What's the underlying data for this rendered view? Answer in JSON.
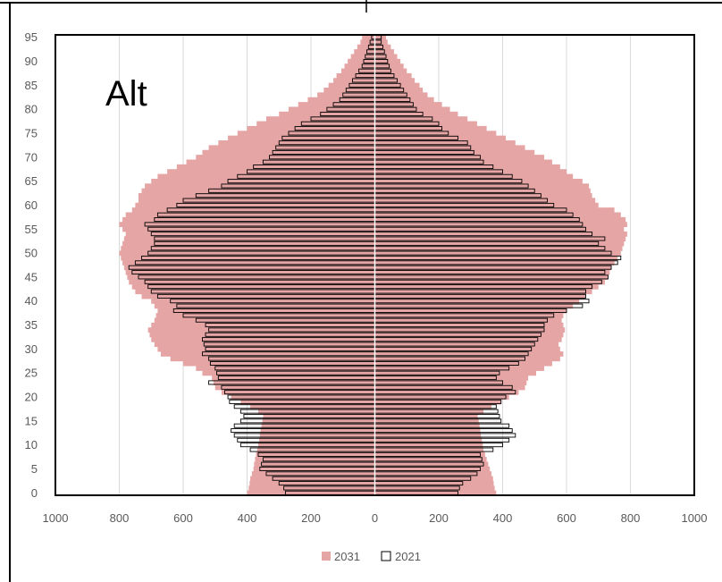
{
  "chart_data": {
    "type": "bar",
    "orientation": "horizontal-population-pyramid",
    "panel_label": "Alt",
    "title": "",
    "xlabel": "",
    "ylabel": "",
    "xlim": [
      -1000,
      1000
    ],
    "ylim": [
      0,
      96
    ],
    "x_ticks": [
      -1000,
      -800,
      -600,
      -400,
      -200,
      0,
      200,
      400,
      600,
      800,
      1000
    ],
    "x_tick_labels": [
      "1000",
      "800",
      "600",
      "400",
      "200",
      "0",
      "200",
      "400",
      "600",
      "800",
      "1000"
    ],
    "y_ticks": [
      0,
      5,
      10,
      15,
      20,
      25,
      30,
      35,
      40,
      45,
      50,
      55,
      60,
      65,
      70,
      75,
      80,
      85,
      90,
      95
    ],
    "y_tick_labels": [
      "0",
      "5",
      "10",
      "15",
      "20",
      "25",
      "30",
      "35",
      "40",
      "45",
      "50",
      "55",
      "60",
      "65",
      "70",
      "75",
      "80",
      "85",
      "90",
      "95"
    ],
    "grid": "vertical",
    "legend_position": "bottom",
    "ages": [
      0,
      1,
      2,
      3,
      4,
      5,
      6,
      7,
      8,
      9,
      10,
      11,
      12,
      13,
      14,
      15,
      16,
      17,
      18,
      19,
      20,
      21,
      22,
      23,
      24,
      25,
      26,
      27,
      28,
      29,
      30,
      31,
      32,
      33,
      34,
      35,
      36,
      37,
      38,
      39,
      40,
      41,
      42,
      43,
      44,
      45,
      46,
      47,
      48,
      49,
      50,
      51,
      52,
      53,
      54,
      55,
      56,
      57,
      58,
      59,
      60,
      61,
      62,
      63,
      64,
      65,
      66,
      67,
      68,
      69,
      70,
      71,
      72,
      73,
      74,
      75,
      76,
      77,
      78,
      79,
      80,
      81,
      82,
      83,
      84,
      85,
      86,
      87,
      88,
      89,
      90,
      91,
      92,
      93,
      94,
      95
    ],
    "series": [
      {
        "name": "2031",
        "color": "#e6a5a5",
        "style": "filled",
        "left": [
          400,
          395,
          392,
          390,
          385,
          380,
          378,
          375,
          372,
          368,
          365,
          362,
          360,
          358,
          355,
          352,
          350,
          365,
          390,
          420,
          450,
          480,
          500,
          505,
          510,
          540,
          560,
          600,
          640,
          670,
          680,
          690,
          700,
          705,
          710,
          700,
          690,
          685,
          680,
          690,
          700,
          730,
          750,
          760,
          770,
          775,
          780,
          785,
          790,
          795,
          800,
          795,
          790,
          785,
          780,
          790,
          800,
          790,
          780,
          760,
          750,
          740,
          740,
          730,
          720,
          700,
          680,
          650,
          620,
          590,
          560,
          540,
          520,
          490,
          460,
          430,
          400,
          370,
          340,
          300,
          270,
          240,
          210,
          180,
          160,
          145,
          130,
          120,
          105,
          95,
          85,
          75,
          65,
          55,
          45,
          40
        ],
        "right": [
          380,
          375,
          372,
          370,
          365,
          360,
          355,
          350,
          345,
          340,
          338,
          335,
          332,
          330,
          328,
          325,
          322,
          340,
          365,
          395,
          420,
          450,
          470,
          475,
          480,
          505,
          530,
          555,
          580,
          590,
          580,
          575,
          585,
          590,
          595,
          590,
          585,
          590,
          600,
          620,
          640,
          660,
          680,
          700,
          720,
          730,
          735,
          740,
          750,
          760,
          770,
          775,
          780,
          785,
          790,
          780,
          790,
          785,
          770,
          750,
          700,
          690,
          680,
          675,
          670,
          650,
          620,
          600,
          580,
          555,
          530,
          500,
          470,
          440,
          410,
          380,
          350,
          320,
          290,
          260,
          235,
          210,
          185,
          165,
          150,
          140,
          125,
          115,
          100,
          90,
          80,
          70,
          60,
          50,
          40,
          35
        ]
      },
      {
        "name": "2021",
        "color": "#ffffff",
        "style": "outline",
        "left": [
          280,
          285,
          300,
          320,
          340,
          360,
          355,
          350,
          365,
          390,
          420,
          430,
          440,
          450,
          440,
          420,
          410,
          420,
          440,
          455,
          460,
          470,
          480,
          520,
          490,
          495,
          500,
          515,
          520,
          540,
          530,
          535,
          540,
          530,
          520,
          530,
          560,
          600,
          630,
          620,
          640,
          680,
          700,
          710,
          720,
          740,
          760,
          770,
          750,
          730,
          710,
          700,
          690,
          690,
          700,
          710,
          720,
          690,
          680,
          650,
          620,
          600,
          560,
          520,
          480,
          460,
          430,
          400,
          380,
          350,
          330,
          320,
          310,
          300,
          290,
          270,
          250,
          230,
          200,
          170,
          150,
          130,
          110,
          100,
          90,
          80,
          70,
          60,
          50,
          40,
          35,
          30,
          25,
          20,
          15,
          10
        ],
        "right": [
          260,
          265,
          275,
          300,
          320,
          330,
          340,
          335,
          330,
          370,
          400,
          420,
          440,
          430,
          420,
          395,
          390,
          385,
          380,
          395,
          410,
          440,
          430,
          400,
          380,
          390,
          420,
          450,
          470,
          480,
          490,
          500,
          510,
          520,
          530,
          530,
          540,
          560,
          600,
          650,
          670,
          660,
          660,
          680,
          710,
          730,
          720,
          740,
          760,
          770,
          740,
          720,
          700,
          720,
          680,
          660,
          650,
          640,
          620,
          600,
          560,
          540,
          520,
          500,
          480,
          460,
          430,
          400,
          370,
          340,
          330,
          310,
          300,
          290,
          260,
          230,
          210,
          200,
          180,
          150,
          130,
          120,
          110,
          100,
          90,
          80,
          70,
          60,
          50,
          45,
          40,
          35,
          30,
          25,
          20,
          20
        ]
      }
    ]
  },
  "legend": {
    "items": [
      {
        "label": "2031",
        "swatch": "filled",
        "color": "#e6a5a5"
      },
      {
        "label": "2021",
        "swatch": "outline",
        "color": "#ffffff"
      }
    ]
  }
}
